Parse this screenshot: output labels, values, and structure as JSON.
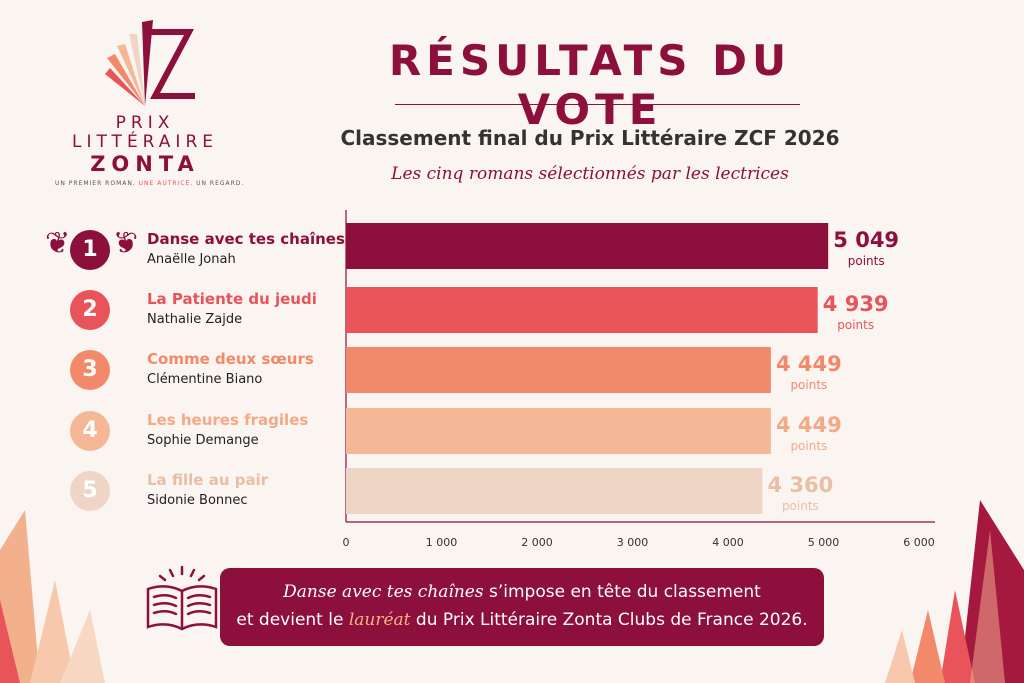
{
  "logo": {
    "line1": "PRIX",
    "line2": "LITTÉRAIRE",
    "line3": "ZONTA",
    "tag_part1": "UN PREMIER ROMAN. ",
    "tag_part2": "UNE AUTRICE.",
    "tag_part3": " UN REGARD."
  },
  "header": {
    "title": "RÉSULTATS DU VOTE",
    "subtitle": "Classement final du Prix Littéraire ZCF 2026",
    "tagline": "Les cinq romans sélectionnés par les lectrices"
  },
  "ranking": [
    {
      "rank": "1",
      "title": "Danse avec tes chaînes",
      "author": "Anaëlle Jonah",
      "color": "#8c0f3c",
      "label_color": "#8c0f3c"
    },
    {
      "rank": "2",
      "title": "La Patiente du jeudi",
      "author": "Nathalie Zajde",
      "color": "#e9535a",
      "label_color": "#e9535a"
    },
    {
      "rank": "3",
      "title": "Comme deux sœurs",
      "author": "Clémentine Biano",
      "color": "#f2896a",
      "label_color": "#f2896a"
    },
    {
      "rank": "4",
      "title": "Les heures fragiles",
      "author": "Sophie Demange",
      "color": "#f5b796",
      "label_color": "#f3a886"
    },
    {
      "rank": "5",
      "title": "La fille au pair",
      "author": "Sidonie Bonnec",
      "color": "#efd5c6",
      "label_color": "#e8bfa5"
    }
  ],
  "chart_data": {
    "type": "bar",
    "orientation": "horizontal",
    "categories": [
      "Danse avec tes chaînes",
      "La Patiente du jeudi",
      "Comme deux sœurs",
      "Les heures fragiles",
      "La fille au pair"
    ],
    "values": [
      5049,
      4939,
      4449,
      4449,
      4360
    ],
    "value_labels": [
      "5 049",
      "4 939",
      "4 449",
      "4 449",
      "4 360"
    ],
    "unit_label": "points",
    "xlim": [
      0,
      6000
    ],
    "ticks": [
      0,
      1000,
      2000,
      3000,
      4000,
      5000,
      6000
    ],
    "tick_labels": [
      "0",
      "1 000",
      "2 000",
      "3 000",
      "4 000",
      "5 000",
      "6 000"
    ],
    "colors": [
      "#8c0f3c",
      "#e9535a",
      "#f2896a",
      "#f5b796",
      "#efd5c6"
    ],
    "label_colors": [
      "#8c0f3c",
      "#e9535a",
      "#f2896a",
      "#f3a886",
      "#e8bfa5"
    ],
    "grid": false
  },
  "banner": {
    "book_title": "Danse avec tes chaînes",
    "text1": " s’impose en tête du classement",
    "text2a": "et devient le ",
    "highlight": "lauréat",
    "text2b": " du Prix Littéraire Zonta Clubs de France 2026."
  }
}
